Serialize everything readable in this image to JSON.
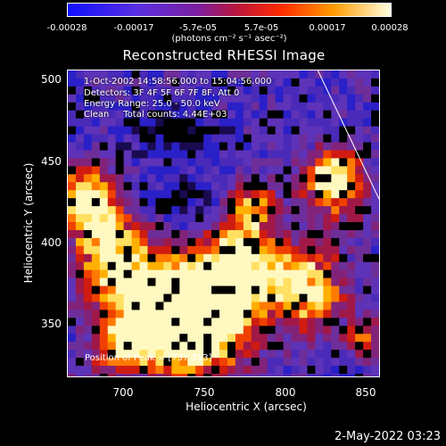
{
  "colorbar": {
    "labels": [
      "-0.00028",
      "-0.00017",
      "-5.7e-05",
      "5.7e-05",
      "0.00017",
      "0.00028"
    ],
    "units": "(photons cm⁻² s⁻¹ asec⁻²)",
    "colors": [
      "#1010ff",
      "#6a2bd6",
      "#8a1f8a",
      "#c0153a",
      "#ff3c00",
      "#ffa800",
      "#ffffd0"
    ]
  },
  "title": "Reconstructed RHESSI Image",
  "info": {
    "time_range": "1-Oct-2002 14:58:56.000 to 15:04:56.000",
    "detectors": "Detectors: 3F 4F 5F 6F 7F 8F, Att 0",
    "energy": "Energy Range: 25.0 - 50.0 keV",
    "clean": "Clean     Total counts: 4.44E+03"
  },
  "peak": "Position of Peak = [737,353]",
  "axes": {
    "xlabel": "Heliocentric X (arcsec)",
    "ylabel": "Heliocentric Y (arcsec)",
    "xticks": [
      "700",
      "750",
      "800",
      "850"
    ],
    "yticks": [
      "500",
      "450",
      "400",
      "350"
    ]
  },
  "timestamp": "2-May-2022 03:23"
}
